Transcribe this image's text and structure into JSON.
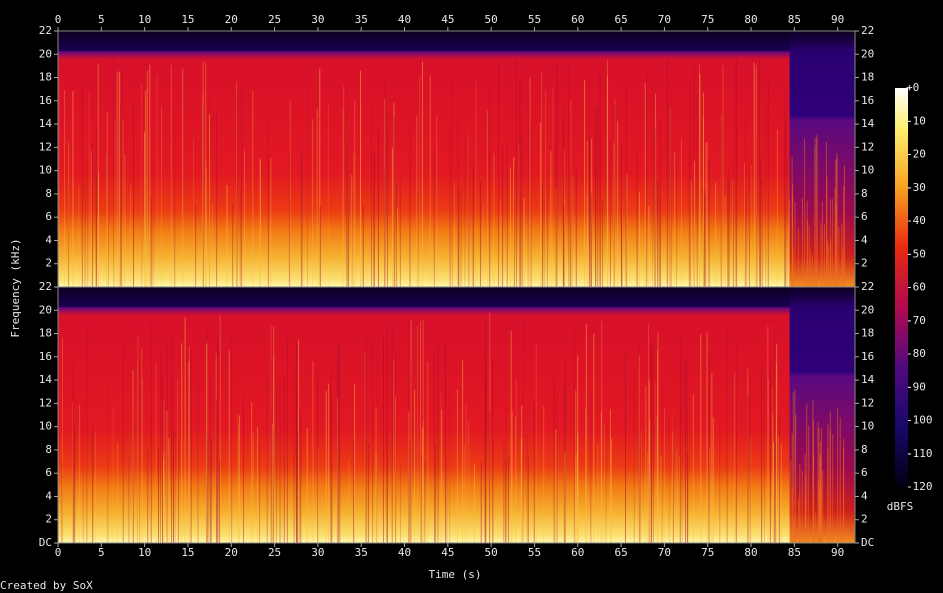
{
  "chart_data": {
    "type": "spectrogram",
    "x_label": "Time (s)",
    "y_label": "Frequency (kHz)",
    "xlim": [
      0,
      92
    ],
    "xticks": [
      0,
      5,
      10,
      15,
      20,
      25,
      30,
      35,
      40,
      45,
      50,
      55,
      60,
      65,
      70,
      75,
      80,
      85,
      90
    ],
    "channels": [
      {
        "ylim": [
          0,
          22
        ],
        "yticks": [
          2,
          4,
          6,
          8,
          10,
          12,
          14,
          16,
          18,
          20,
          22
        ]
      },
      {
        "ylim": [
          0,
          22
        ],
        "yticks": [
          {
            "value": 0,
            "label": "DC"
          },
          2,
          4,
          6,
          8,
          10,
          12,
          14,
          16,
          18,
          20,
          22
        ]
      }
    ],
    "colorbar": {
      "label": "dBFS",
      "lim": [
        -120,
        0
      ],
      "ticks": [
        {
          "value": 0,
          "label": "+0"
        },
        -10,
        -20,
        -30,
        -40,
        -50,
        -60,
        -70,
        -80,
        -90,
        -100,
        -110,
        -120
      ]
    },
    "credit": "Created by SoX"
  }
}
